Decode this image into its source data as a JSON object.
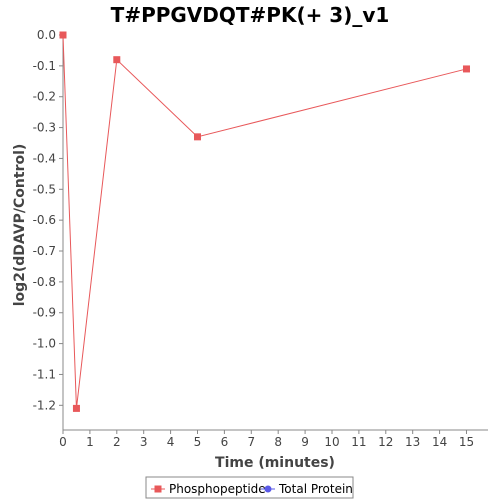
{
  "chart_data": {
    "type": "line",
    "title": "T#PPGVDQT#PK(+ 3)_v1",
    "xlabel": "Time (minutes)",
    "ylabel": "log2(dDAVP/Control)",
    "xlim": [
      0,
      15.8
    ],
    "ylim": [
      -1.28,
      0
    ],
    "x_ticks": [
      0,
      1,
      2,
      3,
      4,
      5,
      6,
      7,
      8,
      9,
      10,
      11,
      12,
      13,
      14,
      15
    ],
    "y_ticks": [
      0.0,
      -0.1,
      -0.2,
      -0.3,
      -0.4,
      -0.5,
      -0.6,
      -0.7,
      -0.8,
      -0.9,
      -1.0,
      -1.1,
      -1.2
    ],
    "y_tick_labels": [
      "0.0",
      "-0.1",
      "-0.2",
      "-0.3",
      "-0.4",
      "-0.5",
      "-0.6",
      "-0.7",
      "-0.8",
      "-0.9",
      "-1.0",
      "-1.1",
      "-1.2"
    ],
    "grid": false,
    "legend_position": "bottom",
    "series": [
      {
        "name": "Phosphopeptide",
        "color": "#e8585a",
        "marker": "square",
        "x": [
          0,
          0.5,
          2,
          5,
          15
        ],
        "y": [
          0.0,
          -1.21,
          -0.08,
          -0.33,
          -0.11
        ]
      },
      {
        "name": "Total Protein",
        "color": "#5a5ae8",
        "marker": "circle",
        "x": [],
        "y": []
      }
    ]
  }
}
